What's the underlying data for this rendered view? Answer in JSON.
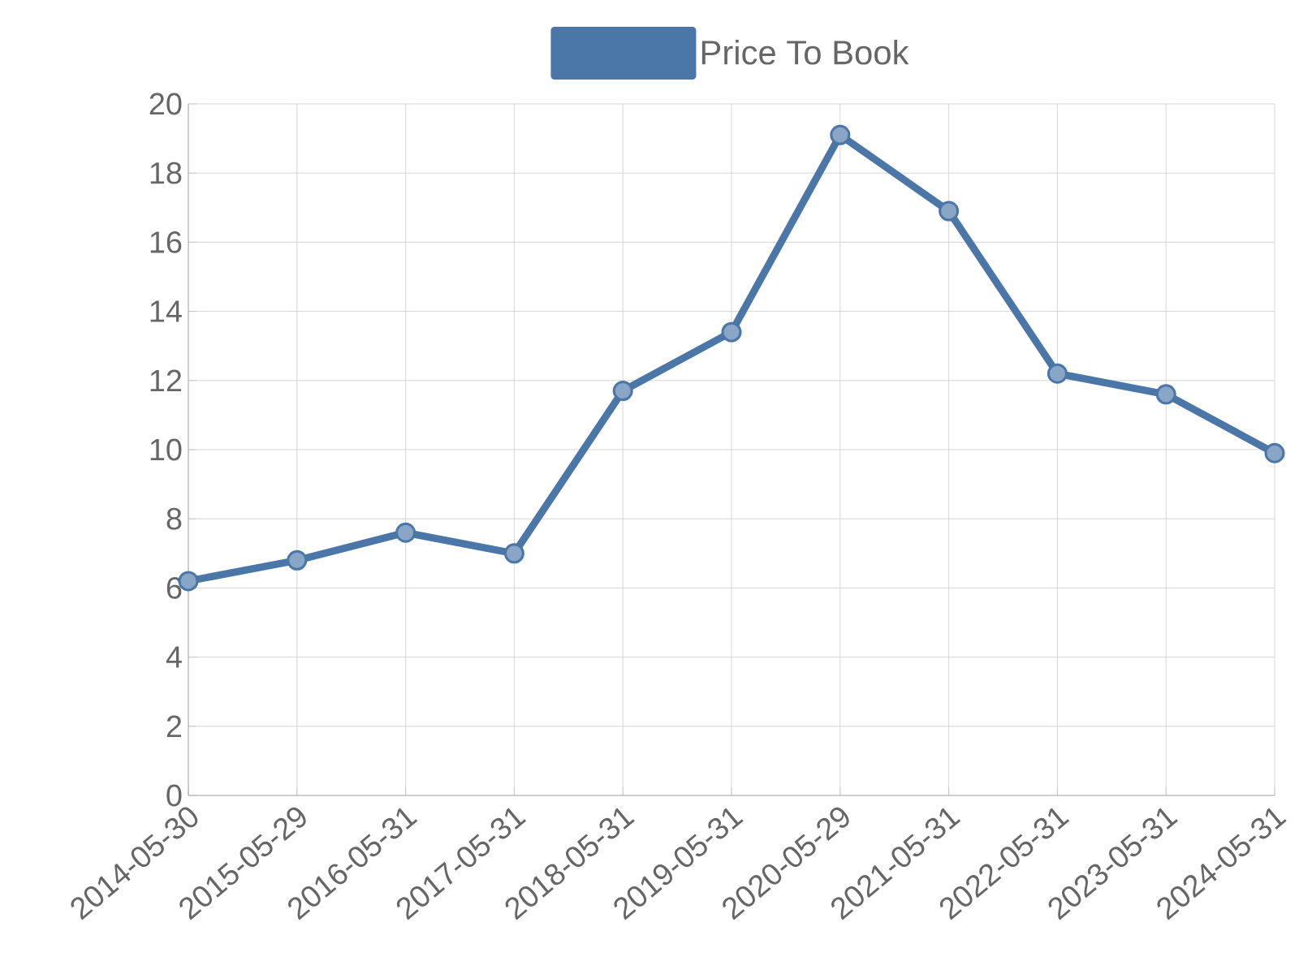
{
  "chart_data": {
    "type": "line",
    "categories": [
      "2014-05-30",
      "2015-05-29",
      "2016-05-31",
      "2017-05-31",
      "2018-05-31",
      "2019-05-31",
      "2020-05-29",
      "2021-05-31",
      "2022-05-31",
      "2023-05-31",
      "2024-05-31"
    ],
    "series": [
      {
        "name": "Price To Book",
        "color": "#4a76a8",
        "values": [
          6.2,
          6.8,
          7.6,
          7.0,
          11.7,
          13.4,
          19.1,
          16.9,
          12.2,
          11.6,
          9.9
        ]
      }
    ],
    "ylim": [
      0,
      20
    ],
    "yticks": [
      0,
      2,
      4,
      6,
      8,
      10,
      12,
      14,
      16,
      18,
      20
    ],
    "grid": true,
    "legend": "top",
    "marker": "circle",
    "line_style": "solid"
  }
}
